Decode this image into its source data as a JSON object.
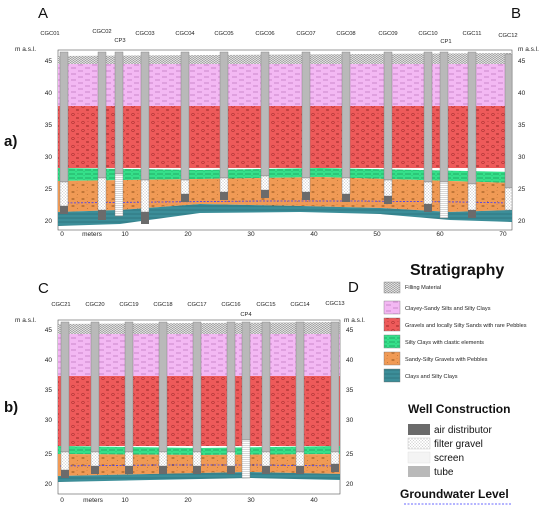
{
  "sectionA": {
    "panel_label": "a)",
    "corner_left": "A",
    "corner_right": "B",
    "elev_unit": "m a.s.l.",
    "dist_unit": "meters",
    "wells": [
      "CGC01",
      "CGC02",
      "CGC03",
      "CGC04",
      "CGC05",
      "CGC06",
      "CGC07",
      "CGC08",
      "CGC09",
      "CGC10",
      "CGC11",
      "CGC12"
    ],
    "cp_labels": [
      "CP3",
      "CP1"
    ],
    "y_ticks": [
      "45",
      "40",
      "35",
      "30",
      "25",
      "20"
    ],
    "x_ticks": [
      "0",
      "10",
      "20",
      "30",
      "40",
      "50",
      "60",
      "70"
    ]
  },
  "sectionC": {
    "panel_label": "b)",
    "corner_left": "C",
    "corner_right": "D",
    "elev_unit": "m a.s.l.",
    "dist_unit": "meters",
    "wells": [
      "CGC21",
      "CGC20",
      "CGC19",
      "CGC18",
      "CGC17",
      "CGC16",
      "CGC15",
      "CGC14",
      "CGC13"
    ],
    "cp_labels": [
      "CP4"
    ],
    "y_ticks": [
      "45",
      "40",
      "35",
      "30",
      "25",
      "20"
    ],
    "x_ticks": [
      "0",
      "10",
      "20",
      "30",
      "40"
    ]
  },
  "legend": {
    "title": "Stratigraphy",
    "layers": [
      {
        "label": "Filling Material",
        "color": "#cfcfcf"
      },
      {
        "label": "Clayey-Sandy Silts and Silty Clays",
        "color": "#f3b8f3"
      },
      {
        "label": "Gravels and locally Silty Sands with rare Pebbles",
        "color": "#ee5a5a"
      },
      {
        "label": "Silty Clays with clastic elements",
        "color": "#35e08a"
      },
      {
        "label": "Sandy-Silty Gravels with Pebbles",
        "color": "#f09a55"
      },
      {
        "label": "Clays and Silty Clays",
        "color": "#3c8e99"
      }
    ],
    "well_title": "Well Construction",
    "well_items": [
      {
        "label": "air distributor",
        "color": "#6b6b6b"
      },
      {
        "label": "filter gravel",
        "color": "#e8e8e8"
      },
      {
        "label": "screen",
        "color": "#f4f4f4"
      },
      {
        "label": "tube",
        "color": "#b9b9b9"
      }
    ],
    "gw_title": "Groundwater Level"
  }
}
